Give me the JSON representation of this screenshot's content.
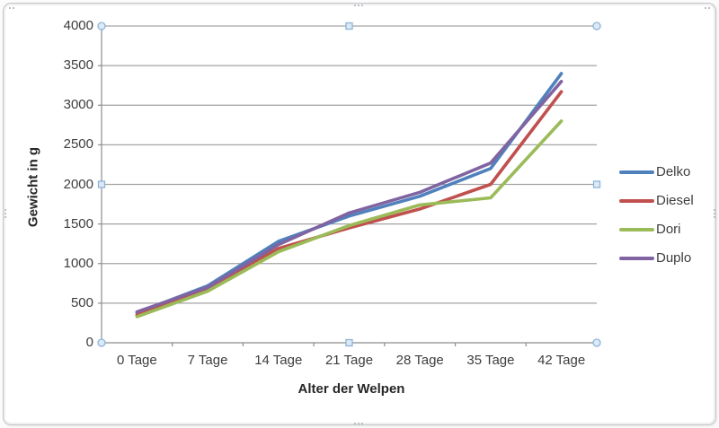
{
  "chart_data": {
    "type": "line",
    "categories": [
      "0 Tage",
      "7 Tage",
      "14 Tage",
      "21 Tage",
      "28 Tage",
      "35 Tage",
      "42 Tage"
    ],
    "series": [
      {
        "name": "Delko",
        "color": "#4F81BD",
        "values": [
          380,
          720,
          1280,
          1600,
          1850,
          2200,
          3400
        ]
      },
      {
        "name": "Diesel",
        "color": "#C0504D",
        "values": [
          350,
          680,
          1190,
          1450,
          1690,
          2000,
          3170
        ]
      },
      {
        "name": "Dori",
        "color": "#9BBB59",
        "values": [
          330,
          650,
          1150,
          1480,
          1740,
          1830,
          2800
        ]
      },
      {
        "name": "Duplo",
        "color": "#8064A2",
        "values": [
          390,
          700,
          1240,
          1640,
          1900,
          2270,
          3300
        ]
      }
    ],
    "xlabel": "Alter der Welpen",
    "ylabel": "Gewicht in g",
    "ylim": [
      0,
      4000
    ],
    "yticks": [
      0,
      500,
      1000,
      1500,
      2000,
      2500,
      3000,
      3500,
      4000
    ],
    "grid": true,
    "legend_position": "right"
  },
  "colors": {
    "gridline": "#a3a3a3",
    "axis": "#8c8c8c",
    "text": "#3d3d3d",
    "background": "#ffffff",
    "selection_handle_fill": "#dceaf7",
    "selection_handle_border": "#8db4d6"
  }
}
